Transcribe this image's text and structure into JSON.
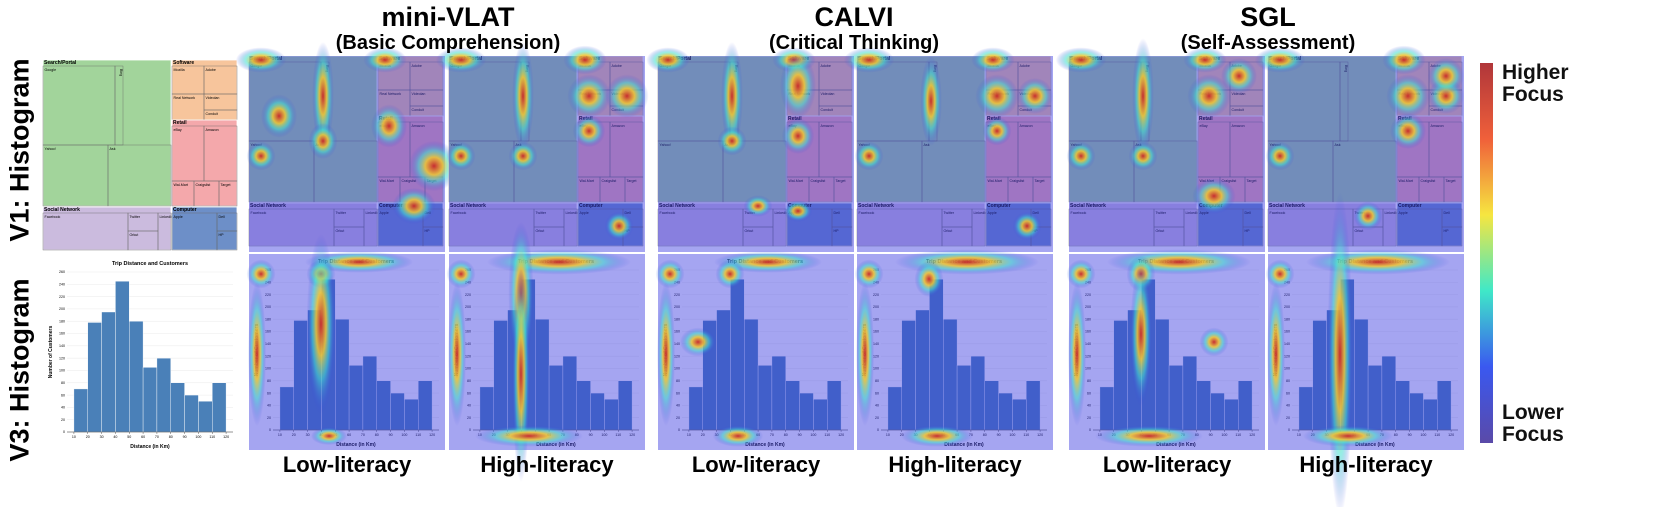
{
  "columns": [
    {
      "title": "mini-VLAT",
      "subtitle": "(Basic Comprehension)"
    },
    {
      "title": "CALVI",
      "subtitle": "(Critical Thinking)"
    },
    {
      "title": "SGL",
      "subtitle": "(Self-Assessment)"
    }
  ],
  "panel_labels": [
    "Low-literacy",
    "High-literacy",
    "Low-literacy",
    "High-literacy",
    "Low-literacy",
    "High-literacy"
  ],
  "row_labels": [
    "V1: Histogram",
    "V3: Histogram"
  ],
  "legend": {
    "high": "Higher Focus",
    "low": "Lower Focus"
  },
  "treemap": {
    "groups": [
      {
        "name": "Search/Portal",
        "items": [
          "Google",
          "Bing",
          "Yahoo!",
          "Ask"
        ]
      },
      {
        "name": "Software",
        "items": [
          "Mozilla",
          "Adobe",
          "Real Network",
          "Videolan",
          "Conduit"
        ]
      },
      {
        "name": "Retail",
        "items": [
          "eBay",
          "Amazon",
          "Wal-Mart",
          "Craigslist",
          "Target"
        ]
      },
      {
        "name": "Social Network",
        "items": [
          "Facebook",
          "Twitter",
          "Orkut",
          "LinkedIn"
        ]
      },
      {
        "name": "Computer",
        "items": [
          "Apple",
          "Dell",
          "HP"
        ]
      }
    ]
  },
  "chart_data": {
    "type": "histogram",
    "title": "Trip Distance and Customers",
    "x_label": "Distance (in Km)",
    "y_label": "Number of Customers",
    "bins": [
      10,
      20,
      30,
      40,
      50,
      60,
      70,
      80,
      90,
      100,
      110,
      120
    ],
    "values": [
      70,
      178,
      195,
      245,
      180,
      105,
      120,
      80,
      60,
      50,
      80
    ],
    "color": "#4a80b8",
    "xlim": [
      5,
      125
    ],
    "ylim": [
      0,
      260
    ],
    "xticks": [
      10,
      20,
      30,
      40,
      50,
      60,
      70,
      80,
      90,
      100,
      110,
      120
    ],
    "yticks": [
      0,
      20,
      40,
      60,
      80,
      100,
      120,
      140,
      160,
      180,
      200,
      220,
      240,
      260
    ]
  }
}
